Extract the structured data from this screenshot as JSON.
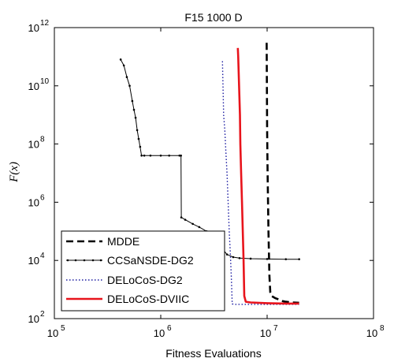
{
  "chart_data": {
    "type": "line",
    "title": "F15 1000 D",
    "xlabel": "Fitness Evaluations",
    "ylabel": "F(x)",
    "xscale": "log",
    "yscale": "log",
    "xlim": [
      100000,
      100000000
    ],
    "ylim": [
      100,
      1000000000000
    ],
    "x_ticks": [
      {
        "base": "10",
        "exp": "5",
        "value": 100000
      },
      {
        "base": "10",
        "exp": "6",
        "value": 1000000
      },
      {
        "base": "10",
        "exp": "7",
        "value": 10000000
      },
      {
        "base": "10",
        "exp": "8",
        "value": 100000000
      }
    ],
    "y_ticks": [
      {
        "base": "10",
        "exp": "2",
        "value": 100
      },
      {
        "base": "10",
        "exp": "4",
        "value": 10000
      },
      {
        "base": "10",
        "exp": "6",
        "value": 1000000
      },
      {
        "base": "10",
        "exp": "8",
        "value": 100000000
      },
      {
        "base": "10",
        "exp": "10",
        "value": 10000000000
      },
      {
        "base": "10",
        "exp": "12",
        "value": 1000000000000
      }
    ],
    "legend_position": "bottom-left",
    "grid": false,
    "series": [
      {
        "name": "MDDE",
        "color": "#000000",
        "style": "dashed",
        "x": [
          9900000,
          9950000,
          10000000,
          10100000,
          10300000,
          10500000,
          10700000,
          11000000,
          12000000,
          13000000,
          14000000,
          15000000,
          17000000,
          20000000
        ],
        "y": [
          300000000000,
          10000000000,
          300000000,
          10000000,
          100000,
          3000,
          800,
          600,
          500,
          450,
          400,
          380,
          360,
          350
        ]
      },
      {
        "name": "CCSaNSDE-DG2",
        "color": "#000000",
        "style": "solid-dot",
        "x": [
          420000,
          450000,
          480000,
          510000,
          540000,
          560000,
          580000,
          600000,
          620000,
          640000,
          660000,
          700000,
          800000,
          1000000,
          1200000,
          1500000,
          1550000,
          1560000,
          1700000,
          2000000,
          2300000,
          2700000,
          3000000,
          3500000,
          3800000,
          4200000,
          4800000,
          5500000,
          7000000,
          10000000,
          15000000,
          20000000
        ],
        "y": [
          80000000000,
          50000000000,
          20000000000,
          10000000000,
          3000000000,
          1500000000,
          800000000,
          300000000,
          150000000,
          80000000,
          40000000,
          40000000,
          40000000,
          40000000,
          40000000,
          40000000,
          40000000,
          300000,
          250000,
          180000,
          140000,
          100000,
          70000,
          40000,
          25000,
          16000,
          13000,
          12000,
          11500,
          11200,
          11000,
          11000
        ]
      },
      {
        "name": "DELoCoS-DG2",
        "color": "#1a1aa0",
        "style": "dotted",
        "x": [
          3800000,
          3850000,
          3900000,
          4000000,
          4100000,
          4200000,
          4300000,
          4400000,
          4500000,
          4600000,
          4700000,
          5000000,
          7000000,
          10000000,
          15000000,
          20000000
        ],
        "y": [
          70000000000,
          10000000000,
          1000000000,
          300000000,
          50000000,
          10000000,
          1000000,
          100000,
          20000,
          3000,
          320,
          310,
          310,
          310,
          310,
          310
        ]
      },
      {
        "name": "DELoCoS-DVIIC",
        "color": "#e8141c",
        "style": "solid",
        "x": [
          5300000,
          5350000,
          5450000,
          5550000,
          5600000,
          5700000,
          5800000,
          5900000,
          6000000,
          6100000,
          6300000,
          7000000,
          10000000,
          15000000,
          20000000
        ],
        "y": [
          200000000000,
          100000000000,
          10000000000,
          1000000000,
          100000000,
          10000000,
          1000000,
          100000,
          10000,
          600,
          380,
          360,
          340,
          330,
          330
        ]
      }
    ]
  }
}
